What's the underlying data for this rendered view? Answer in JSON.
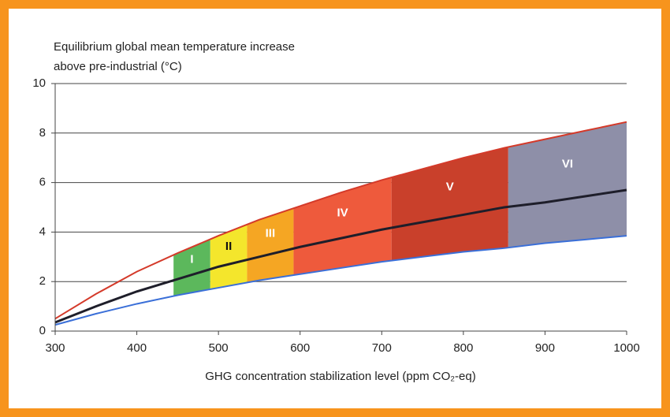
{
  "chart_data": {
    "type": "band",
    "title_lines": [
      "Equilibrium global mean temperature increase",
      "above pre-industrial (°C)"
    ],
    "x_label": "GHG concentration stabilization level (ppm CO₂-eq)",
    "xlim": [
      300,
      1000
    ],
    "xticks": [
      300,
      400,
      500,
      600,
      700,
      800,
      900,
      1000
    ],
    "ylim": [
      0,
      10
    ],
    "yticks": [
      0,
      2,
      4,
      6,
      8,
      10
    ],
    "grid": true,
    "x": [
      300,
      350,
      400,
      450,
      500,
      550,
      600,
      650,
      700,
      750,
      800,
      850,
      900,
      950,
      1000
    ],
    "series": [
      {
        "color": "#d43a2a",
        "values": [
          0.5,
          1.5,
          2.4,
          3.15,
          3.85,
          4.5,
          5.05,
          5.6,
          6.1,
          6.55,
          7.0,
          7.4,
          7.75,
          8.1,
          8.45
        ]
      },
      {
        "color": "#1e1e2a",
        "values": [
          0.35,
          1.0,
          1.6,
          2.1,
          2.6,
          3.0,
          3.4,
          3.75,
          4.1,
          4.4,
          4.7,
          5.0,
          5.2,
          5.45,
          5.7
        ]
      },
      {
        "color": "#3a6fd8",
        "values": [
          0.25,
          0.7,
          1.1,
          1.45,
          1.75,
          2.05,
          2.3,
          2.55,
          2.8,
          3.0,
          3.2,
          3.35,
          3.55,
          3.7,
          3.85
        ]
      }
    ],
    "regions": [
      {
        "label": "I",
        "x": [
          445,
          490
        ],
        "color": "#5cb85c",
        "label_color": "#ffffff"
      },
      {
        "label": "II",
        "x": [
          490,
          535
        ],
        "color": "#f4e62c",
        "label_color": "#111111"
      },
      {
        "label": "III",
        "x": [
          535,
          592
        ],
        "color": "#f5a623",
        "label_color": "#ffffff"
      },
      {
        "label": "IV",
        "x": [
          592,
          712
        ],
        "color": "#ee5a3c",
        "label_color": "#ffffff"
      },
      {
        "label": "V",
        "x": [
          712,
          855
        ],
        "color": "#c9402b",
        "label_color": "#ffffff"
      },
      {
        "label": "VI",
        "x": [
          855,
          1000
        ],
        "color": "#8e8fa8",
        "label_color": "#ffffff"
      }
    ]
  }
}
